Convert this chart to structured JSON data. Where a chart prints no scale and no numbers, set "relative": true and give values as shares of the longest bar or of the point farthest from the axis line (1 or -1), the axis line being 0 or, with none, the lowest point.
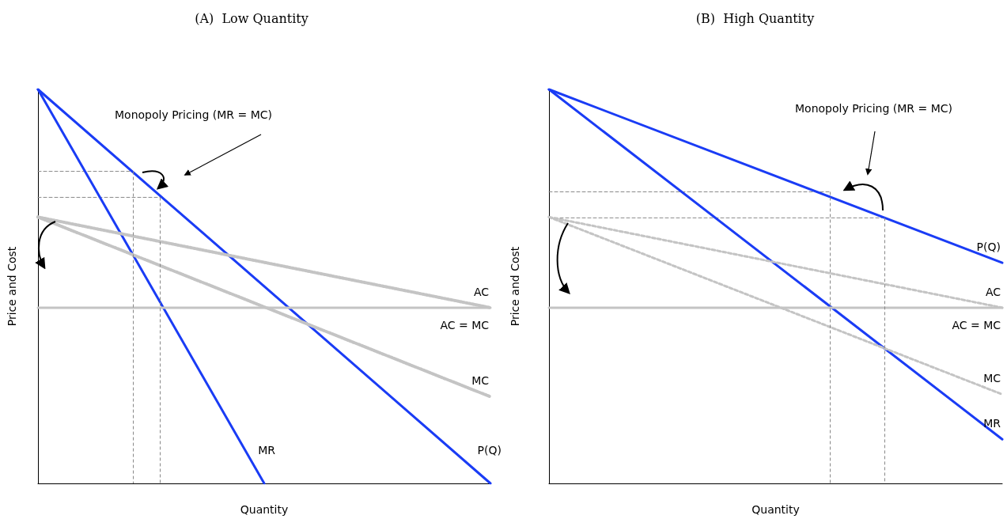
{
  "chart_data": [
    {
      "type": "line",
      "title": "(A)  Low Quantity",
      "xlabel": "Quantity",
      "ylabel": "Price and Cost",
      "relative": true,
      "annotations": [
        "Monopoly Pricing (MR = MC)"
      ],
      "categories": [
        null,
        null,
        null,
        null,
        null,
        null,
        null,
        null,
        null,
        null,
        null,
        null,
        null,
        null,
        null,
        null,
        null,
        null,
        null,
        null,
        null,
        null,
        null,
        null,
        null,
        null,
        null,
        null,
        null,
        null,
        null,
        null,
        null,
        null,
        null,
        null,
        null,
        null,
        null,
        null,
        null,
        null,
        null,
        null,
        null,
        null,
        null,
        null,
        null,
        null,
        null,
        null,
        null,
        null,
        null,
        null,
        null,
        null,
        null,
        null,
        null,
        null,
        null,
        null,
        null,
        null,
        null,
        null,
        null,
        null,
        null,
        null,
        null,
        null,
        null,
        null,
        null,
        null,
        null,
        null,
        null,
        null,
        null,
        null,
        null,
        null,
        null,
        null,
        null,
        null,
        null,
        null,
        null,
        null,
        null,
        null,
        null,
        null,
        null,
        null,
        null
      ],
      "series": [
        {
          "name": "P(Q)",
          "color": "#1a3cf5",
          "line_style": "solid",
          "values": [
            1,
            null,
            null,
            null,
            null,
            null,
            null,
            null,
            null,
            null,
            null,
            null,
            null,
            null,
            null,
            null,
            null,
            null,
            null,
            null,
            null,
            null,
            null,
            null,
            null,
            null,
            null,
            null,
            null,
            null,
            null,
            null,
            null,
            null,
            null,
            null,
            null,
            null,
            null,
            null,
            null,
            null,
            null,
            null,
            null,
            null,
            null,
            null,
            null,
            null,
            null,
            null,
            null,
            null,
            null,
            null,
            null,
            null,
            null,
            null,
            null,
            null,
            null,
            null,
            null,
            null,
            null,
            null,
            null,
            null,
            null,
            null,
            null,
            null,
            null,
            null,
            null,
            null,
            null,
            null,
            null,
            null,
            null,
            null,
            null,
            null,
            null,
            null,
            null,
            null,
            null,
            null,
            null,
            null,
            null,
            null,
            null,
            null,
            null,
            null,
            0
          ]
        },
        {
          "name": "MR",
          "color": "#1a3cf5",
          "line_style": "solid",
          "values": [
            1,
            null,
            null,
            null,
            null,
            null,
            null,
            null,
            null,
            null,
            null,
            null,
            null,
            null,
            null,
            null,
            null,
            null,
            null,
            null,
            null,
            null,
            null,
            null,
            null,
            null,
            null,
            null,
            null,
            null,
            null,
            null,
            null,
            null,
            null,
            null,
            null,
            null,
            null,
            null,
            null,
            null,
            null,
            null,
            null,
            null,
            null,
            null,
            null,
            null,
            0,
            null,
            null,
            null,
            null,
            null,
            null,
            null,
            null,
            null,
            null,
            null,
            null,
            null,
            null,
            null,
            null,
            null,
            null,
            null,
            null,
            null,
            null,
            null,
            null,
            null,
            null,
            null,
            null,
            null,
            null,
            null,
            null,
            null,
            null,
            null,
            null,
            null,
            null,
            null,
            null,
            null,
            null,
            null,
            null,
            null,
            null,
            null,
            null,
            null,
            null
          ]
        },
        {
          "name": "AC",
          "color": "#c4c4c4",
          "line_style": "dotted",
          "values": [
            0.676,
            null,
            null,
            null,
            null,
            null,
            null,
            null,
            null,
            null,
            null,
            null,
            null,
            null,
            null,
            null,
            null,
            null,
            null,
            null,
            null,
            null,
            null,
            null,
            null,
            null,
            null,
            null,
            null,
            null,
            null,
            null,
            null,
            null,
            null,
            null,
            null,
            null,
            null,
            null,
            null,
            null,
            null,
            null,
            null,
            null,
            null,
            null,
            null,
            null,
            null,
            null,
            null,
            null,
            null,
            null,
            null,
            null,
            null,
            null,
            null,
            null,
            null,
            null,
            null,
            null,
            null,
            null,
            null,
            null,
            null,
            null,
            null,
            null,
            null,
            null,
            null,
            null,
            null,
            null,
            null,
            null,
            null,
            null,
            null,
            null,
            null,
            null,
            null,
            null,
            null,
            null,
            null,
            null,
            null,
            null,
            null,
            null,
            null,
            null,
            0.446
          ]
        },
        {
          "name": "AC = MC",
          "color": "#c4c4c4",
          "line_style": "solid",
          "values": [
            0.446,
            null,
            null,
            null,
            null,
            null,
            null,
            null,
            null,
            null,
            null,
            null,
            null,
            null,
            null,
            null,
            null,
            null,
            null,
            null,
            null,
            null,
            null,
            null,
            null,
            null,
            null,
            null,
            null,
            null,
            null,
            null,
            null,
            null,
            null,
            null,
            null,
            null,
            null,
            null,
            null,
            null,
            null,
            null,
            null,
            null,
            null,
            null,
            null,
            null,
            null,
            null,
            null,
            null,
            null,
            null,
            null,
            null,
            null,
            null,
            null,
            null,
            null,
            null,
            null,
            null,
            null,
            null,
            null,
            null,
            null,
            null,
            null,
            null,
            null,
            null,
            null,
            null,
            null,
            null,
            null,
            null,
            null,
            null,
            null,
            null,
            null,
            null,
            null,
            null,
            null,
            null,
            null,
            null,
            null,
            null,
            null,
            null,
            null,
            null,
            0.446
          ]
        },
        {
          "name": "MC",
          "color": "#c4c4c4",
          "line_style": "dotted",
          "values": [
            0.676,
            null,
            null,
            null,
            null,
            null,
            null,
            null,
            null,
            null,
            null,
            null,
            null,
            null,
            null,
            null,
            null,
            null,
            null,
            null,
            null,
            null,
            null,
            null,
            null,
            null,
            null,
            null,
            null,
            null,
            null,
            null,
            null,
            null,
            null,
            null,
            null,
            null,
            null,
            null,
            null,
            null,
            null,
            null,
            null,
            null,
            null,
            null,
            null,
            null,
            null,
            null,
            null,
            null,
            null,
            null,
            null,
            null,
            null,
            null,
            null,
            null,
            null,
            null,
            null,
            null,
            null,
            null,
            null,
            null,
            null,
            null,
            null,
            null,
            null,
            null,
            null,
            null,
            null,
            null,
            null,
            null,
            null,
            null,
            null,
            null,
            null,
            null,
            null,
            null,
            null,
            null,
            null,
            null,
            null,
            null,
            null,
            null,
            null,
            null,
            0.22
          ]
        },
        {
          "color": "#888888",
          "line_style": "dashed",
          "values": [
            0.792,
            null,
            null,
            null,
            null,
            null,
            null,
            null,
            null,
            null,
            null,
            null,
            null,
            null,
            null,
            null,
            null,
            null,
            null,
            null,
            null,
            0.792,
            null,
            null,
            null,
            null,
            null,
            null,
            null,
            null,
            null,
            null,
            null,
            null,
            null,
            null,
            null,
            null,
            null,
            null,
            null,
            null,
            null,
            null,
            null,
            null,
            null,
            null,
            null,
            null,
            null,
            null,
            null,
            null,
            null,
            null,
            null,
            null,
            null,
            null,
            null,
            null,
            null,
            null,
            null,
            null,
            null,
            null,
            null,
            null,
            null,
            null,
            null,
            null,
            null,
            null,
            null,
            null,
            null,
            null,
            null,
            null,
            null,
            null,
            null,
            null,
            null,
            null,
            null,
            null,
            null,
            null,
            null,
            null,
            null,
            null,
            null,
            null,
            null,
            null,
            null
          ]
        },
        {
          "color": "#888888",
          "line_style": "dashed",
          "values": [
            0.726,
            null,
            null,
            null,
            null,
            null,
            null,
            null,
            null,
            null,
            null,
            null,
            null,
            null,
            null,
            null,
            null,
            null,
            null,
            null,
            null,
            null,
            null,
            null,
            null,
            null,
            null,
            0.726,
            null,
            null,
            null,
            null,
            null,
            null,
            null,
            null,
            null,
            null,
            null,
            null,
            null,
            null,
            null,
            null,
            null,
            null,
            null,
            null,
            null,
            null,
            null,
            null,
            null,
            null,
            null,
            null,
            null,
            null,
            null,
            null,
            null,
            null,
            null,
            null,
            null,
            null,
            null,
            null,
            null,
            null,
            null,
            null,
            null,
            null,
            null,
            null,
            null,
            null,
            null,
            null,
            null,
            null,
            null,
            null,
            null,
            null,
            null,
            null,
            null,
            null,
            null,
            null,
            null,
            null,
            null,
            null,
            null,
            null,
            null,
            null,
            null
          ]
        }
      ]
    },
    {
      "type": "line",
      "title": "(B)  High Quantity",
      "xlabel": "Quantity",
      "ylabel": "Price and Cost",
      "relative": true,
      "annotations": [
        "Monopoly Pricing (MR = MC)"
      ],
      "categories": [
        null,
        null,
        null,
        null,
        null,
        null,
        null,
        null,
        null,
        null,
        null,
        null,
        null,
        null,
        null,
        null,
        null,
        null,
        null,
        null,
        null,
        null,
        null,
        null,
        null,
        null,
        null,
        null,
        null,
        null,
        null,
        null,
        null,
        null,
        null,
        null,
        null,
        null,
        null,
        null,
        null,
        null,
        null,
        null,
        null,
        null,
        null,
        null,
        null,
        null,
        null,
        null,
        null,
        null,
        null,
        null,
        null,
        null,
        null,
        null,
        null,
        null,
        null,
        null,
        null,
        null,
        null,
        null,
        null,
        null,
        null,
        null,
        null,
        null,
        null,
        null,
        null,
        null,
        null,
        null,
        null,
        null,
        null,
        null,
        null,
        null,
        null,
        null,
        null,
        null,
        null,
        null,
        null,
        null,
        null,
        null,
        null,
        null,
        null,
        null,
        null
      ],
      "series": [
        {
          "name": "P(Q)",
          "color": "#1a3cf5",
          "line_style": "solid",
          "values": [
            1,
            null,
            null,
            null,
            null,
            null,
            null,
            null,
            null,
            null,
            null,
            null,
            null,
            null,
            null,
            null,
            null,
            null,
            null,
            null,
            null,
            null,
            null,
            null,
            null,
            null,
            null,
            null,
            null,
            null,
            null,
            null,
            null,
            null,
            null,
            null,
            null,
            null,
            null,
            null,
            null,
            null,
            null,
            null,
            null,
            null,
            null,
            null,
            null,
            null,
            null,
            null,
            null,
            null,
            null,
            null,
            null,
            null,
            null,
            null,
            null,
            null,
            null,
            null,
            null,
            null,
            null,
            null,
            null,
            null,
            null,
            null,
            null,
            null,
            null,
            null,
            null,
            null,
            null,
            null,
            null,
            null,
            null,
            null,
            null,
            null,
            null,
            null,
            null,
            null,
            null,
            null,
            null,
            null,
            null,
            null,
            null,
            null,
            null,
            null,
            0.56
          ]
        },
        {
          "name": "MR",
          "color": "#1a3cf5",
          "line_style": "solid",
          "values": [
            1,
            null,
            null,
            null,
            null,
            null,
            null,
            null,
            null,
            null,
            null,
            null,
            null,
            null,
            null,
            null,
            null,
            null,
            null,
            null,
            null,
            null,
            null,
            null,
            null,
            null,
            null,
            null,
            null,
            null,
            null,
            null,
            null,
            null,
            null,
            null,
            null,
            null,
            null,
            null,
            null,
            null,
            null,
            null,
            null,
            null,
            null,
            null,
            null,
            null,
            null,
            null,
            null,
            null,
            null,
            null,
            null,
            null,
            null,
            null,
            null,
            null,
            null,
            null,
            null,
            null,
            null,
            null,
            null,
            null,
            null,
            null,
            null,
            null,
            null,
            null,
            null,
            null,
            null,
            null,
            null,
            null,
            null,
            null,
            null,
            null,
            null,
            null,
            null,
            null,
            null,
            null,
            null,
            null,
            null,
            null,
            null,
            null,
            null,
            null,
            0.112
          ]
        },
        {
          "name": "AC",
          "color": "#c4c4c4",
          "line_style": "dashed",
          "values": [
            0.676,
            null,
            null,
            null,
            null,
            null,
            null,
            null,
            null,
            null,
            null,
            null,
            null,
            null,
            null,
            null,
            null,
            null,
            null,
            null,
            null,
            null,
            null,
            null,
            null,
            null,
            null,
            null,
            null,
            null,
            null,
            null,
            null,
            null,
            null,
            null,
            null,
            null,
            null,
            null,
            null,
            null,
            null,
            null,
            null,
            null,
            null,
            null,
            null,
            null,
            null,
            null,
            null,
            null,
            null,
            null,
            null,
            null,
            null,
            null,
            null,
            null,
            null,
            null,
            null,
            null,
            null,
            null,
            null,
            null,
            null,
            null,
            null,
            null,
            null,
            null,
            null,
            null,
            null,
            null,
            null,
            null,
            null,
            null,
            null,
            null,
            null,
            null,
            null,
            null,
            null,
            null,
            null,
            null,
            null,
            null,
            null,
            null,
            null,
            null,
            0.446
          ]
        },
        {
          "name": "AC = MC",
          "color": "#c4c4c4",
          "line_style": "solid",
          "values": [
            0.446,
            null,
            null,
            null,
            null,
            null,
            null,
            null,
            null,
            null,
            null,
            null,
            null,
            null,
            null,
            null,
            null,
            null,
            null,
            null,
            null,
            null,
            null,
            null,
            null,
            null,
            null,
            null,
            null,
            null,
            null,
            null,
            null,
            null,
            null,
            null,
            null,
            null,
            null,
            null,
            null,
            null,
            null,
            null,
            null,
            null,
            null,
            null,
            null,
            null,
            null,
            null,
            null,
            null,
            null,
            null,
            null,
            null,
            null,
            null,
            null,
            null,
            null,
            null,
            null,
            null,
            null,
            null,
            null,
            null,
            null,
            null,
            null,
            null,
            null,
            null,
            null,
            null,
            null,
            null,
            null,
            null,
            null,
            null,
            null,
            null,
            null,
            null,
            null,
            null,
            null,
            null,
            null,
            null,
            null,
            null,
            null,
            null,
            null,
            null,
            0.446
          ]
        },
        {
          "name": "MC",
          "color": "#c4c4c4",
          "line_style": "dashed",
          "values": [
            0.676,
            null,
            null,
            null,
            null,
            null,
            null,
            null,
            null,
            null,
            null,
            null,
            null,
            null,
            null,
            null,
            null,
            null,
            null,
            null,
            null,
            null,
            null,
            null,
            null,
            null,
            null,
            null,
            null,
            null,
            null,
            null,
            null,
            null,
            null,
            null,
            null,
            null,
            null,
            null,
            null,
            null,
            null,
            null,
            null,
            null,
            null,
            null,
            null,
            null,
            null,
            null,
            null,
            null,
            null,
            null,
            null,
            null,
            null,
            null,
            null,
            null,
            null,
            null,
            null,
            null,
            null,
            null,
            null,
            null,
            null,
            null,
            null,
            null,
            null,
            null,
            null,
            null,
            null,
            null,
            null,
            null,
            null,
            null,
            null,
            null,
            null,
            null,
            null,
            null,
            null,
            null,
            null,
            null,
            null,
            null,
            null,
            null,
            null,
            null,
            0.226
          ]
        },
        {
          "color": "#888888",
          "line_style": "dashed",
          "values": [
            0.74,
            null,
            null,
            null,
            null,
            null,
            null,
            null,
            null,
            null,
            null,
            null,
            null,
            null,
            null,
            null,
            null,
            null,
            null,
            null,
            null,
            null,
            null,
            null,
            null,
            null,
            null,
            null,
            null,
            null,
            null,
            null,
            null,
            null,
            null,
            null,
            null,
            null,
            null,
            null,
            null,
            null,
            null,
            null,
            null,
            null,
            null,
            null,
            null,
            null,
            null,
            null,
            null,
            null,
            null,
            null,
            null,
            null,
            null,
            null,
            null,
            null,
            0.74,
            null,
            null,
            null,
            null,
            null,
            null,
            null,
            null,
            null,
            null,
            null,
            null,
            null,
            null,
            null,
            null,
            null,
            null,
            null,
            null,
            null,
            null,
            null,
            null,
            null,
            null,
            null,
            null,
            null,
            null,
            null,
            null,
            null,
            null,
            null,
            null,
            null,
            null
          ]
        },
        {
          "color": "#888888",
          "line_style": "dashed",
          "values": [
            0.674,
            null,
            null,
            null,
            null,
            null,
            null,
            null,
            null,
            null,
            null,
            null,
            null,
            null,
            null,
            null,
            null,
            null,
            null,
            null,
            null,
            null,
            null,
            null,
            null,
            null,
            null,
            null,
            null,
            null,
            null,
            null,
            null,
            null,
            null,
            null,
            null,
            null,
            null,
            null,
            null,
            null,
            null,
            null,
            null,
            null,
            null,
            null,
            null,
            null,
            null,
            null,
            null,
            null,
            null,
            null,
            null,
            null,
            null,
            null,
            null,
            null,
            null,
            null,
            null,
            null,
            null,
            null,
            null,
            null,
            null,
            null,
            null,
            null,
            0.674,
            null,
            null,
            null,
            null,
            null,
            null,
            null,
            null,
            null,
            null,
            null,
            null,
            null,
            null,
            null,
            null,
            null,
            null,
            null,
            null,
            null,
            null,
            null,
            null,
            null,
            null
          ]
        }
      ]
    }
  ]
}
